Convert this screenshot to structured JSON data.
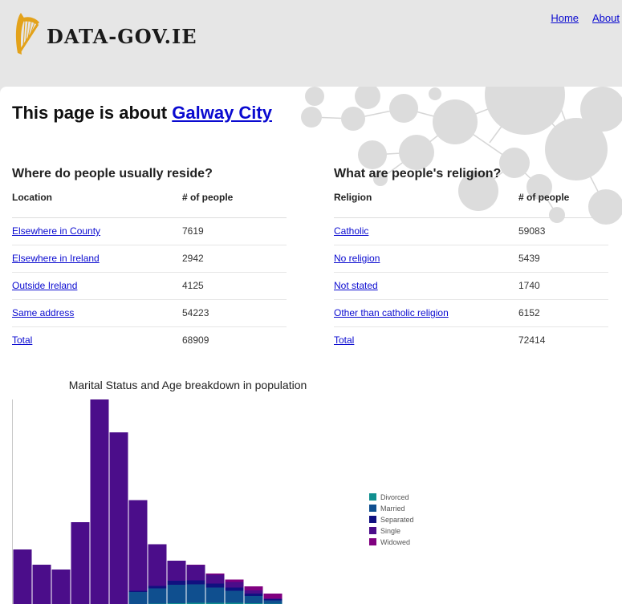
{
  "site": {
    "logo_text": "DATA-GOV.IE"
  },
  "nav": [
    {
      "label": "Home"
    },
    {
      "label": "About"
    }
  ],
  "page": {
    "title_prefix": "This page is about",
    "title_link": "Galway City"
  },
  "residence": {
    "title": "Where do people usually reside?",
    "columns": [
      "Location",
      "# of people"
    ],
    "rows": [
      {
        "label": "Elsewhere in County",
        "value": "7619"
      },
      {
        "label": "Elsewhere in Ireland",
        "value": "2942"
      },
      {
        "label": "Outside Ireland",
        "value": "4125"
      },
      {
        "label": "Same address",
        "value": "54223"
      },
      {
        "label": "Total",
        "value": "68909"
      }
    ]
  },
  "religion": {
    "title": "What are people's religion?",
    "columns": [
      "Religion",
      "# of people"
    ],
    "rows": [
      {
        "label": "Catholic",
        "value": "59083"
      },
      {
        "label": "No religion",
        "value": "5439"
      },
      {
        "label": "Not stated",
        "value": "1740"
      },
      {
        "label": "Other than catholic religion",
        "value": "6152"
      },
      {
        "label": "Total",
        "value": "72414"
      }
    ]
  },
  "chart_data": {
    "type": "bar",
    "stacked": true,
    "title": "Marital Status and Age breakdown in population",
    "xlabel": "",
    "ylabel": "",
    "legend_position": "right",
    "series": [
      {
        "name": "Divorced",
        "color": "#108f8f",
        "values": [
          0,
          0,
          0,
          0,
          0,
          0,
          0,
          0.5,
          1,
          1.5,
          1.5,
          1.5,
          1,
          0.5
        ]
      },
      {
        "name": "Married",
        "color": "#0f4f8f",
        "values": [
          0,
          0,
          0,
          0,
          0,
          0,
          15,
          19,
          23,
          23,
          19,
          15,
          9,
          4
        ]
      },
      {
        "name": "Separated",
        "color": "#101080",
        "values": [
          0,
          0,
          0,
          0,
          0,
          0,
          1.5,
          3,
          5,
          5,
          5,
          4,
          3,
          1.5
        ]
      },
      {
        "name": "Single",
        "color": "#4b0d8a",
        "values": [
          68,
          49,
          43,
          102,
          255,
          214,
          113,
          52,
          25,
          19,
          11,
          7,
          4,
          1
        ]
      },
      {
        "name": "Widowed",
        "color": "#800080",
        "values": [
          0,
          0,
          0,
          0,
          0,
          0,
          0,
          0,
          0,
          0.5,
          1.5,
          3,
          5,
          6
        ]
      }
    ]
  }
}
